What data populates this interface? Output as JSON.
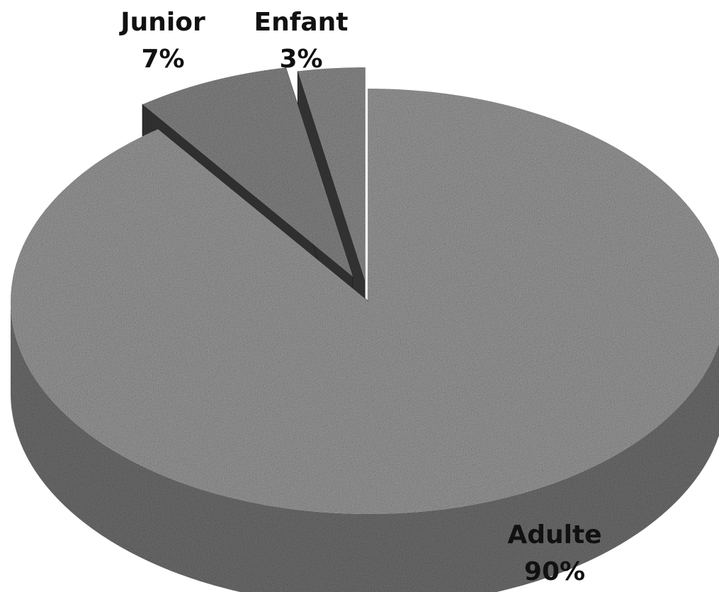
{
  "chart_data": {
    "type": "pie",
    "title": "",
    "style": "3d-exploded",
    "slices": [
      {
        "label": "Adulte",
        "value": 90,
        "percent_label": "90%",
        "color": "#9a9a9a"
      },
      {
        "label": "Junior",
        "value": 7,
        "percent_label": "7%",
        "color": "#858585"
      },
      {
        "label": "Enfant",
        "value": 3,
        "percent_label": "3%",
        "color": "#8c8c8c"
      }
    ]
  }
}
